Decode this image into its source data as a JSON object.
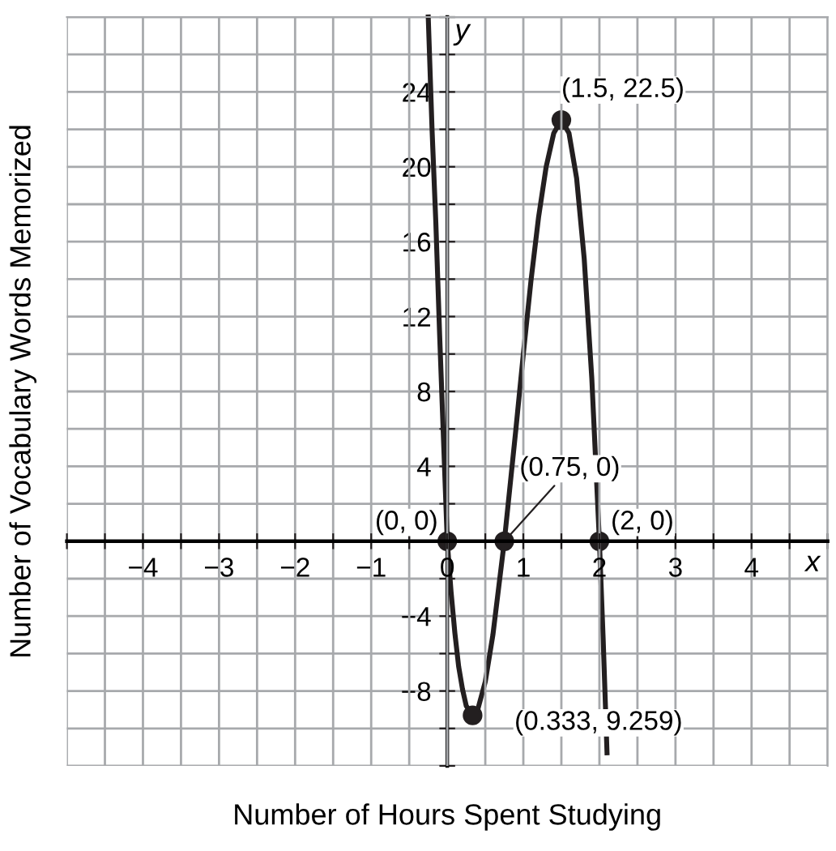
{
  "chart_data": {
    "type": "line",
    "xlabel": "Number of Hours Spent Studying",
    "ylabel": "Number of Vocabulary Words Memorized",
    "xlim": [
      -5,
      5
    ],
    "ylim": [
      -12,
      28
    ],
    "xticks": [
      {
        "value": -5,
        "label": null
      },
      {
        "value": -4.5,
        "label": null
      },
      -4,
      {
        "value": -3.5,
        "label": null
      },
      -3,
      {
        "value": -2.5,
        "label": null
      },
      -2,
      {
        "value": -1.5,
        "label": null
      },
      -1,
      {
        "value": -0.5,
        "label": null
      },
      0,
      {
        "value": 0.5,
        "label": null
      },
      1,
      {
        "value": 1.5,
        "label": null
      },
      2,
      {
        "value": 2.5,
        "label": null
      },
      3,
      {
        "value": 3.5,
        "label": null
      },
      4,
      {
        "value": 4.5,
        "label": null
      },
      {
        "value": 5,
        "label": null
      }
    ],
    "yticks": [
      {
        "value": -12,
        "label": null
      },
      {
        "value": -10,
        "label": null
      },
      -8,
      {
        "value": -6,
        "label": null
      },
      -4,
      {
        "value": -2,
        "label": null
      },
      {
        "value": 0,
        "label": null
      },
      {
        "value": 2,
        "label": null
      },
      4,
      {
        "value": 6,
        "label": null
      },
      8,
      {
        "value": 10,
        "label": null
      },
      12,
      {
        "value": 14,
        "label": null
      },
      16,
      {
        "value": 18,
        "label": null
      },
      20,
      {
        "value": 22,
        "label": null
      },
      24,
      {
        "value": 26,
        "label": null
      },
      {
        "value": 28,
        "label": null
      }
    ],
    "grid": true,
    "series": [
      {
        "color": "#231f20",
        "marker": "none",
        "x": [
          -0.25,
          -0.2,
          -0.15,
          -0.1,
          -0.05,
          0,
          0.05,
          0.1,
          0.15,
          0.2,
          0.25,
          0.333,
          0.4,
          0.5,
          0.6,
          0.75,
          0.9,
          1.0,
          1.1,
          1.2,
          1.3,
          1.4,
          1.5,
          1.6,
          1.7,
          1.8,
          1.9,
          2.0,
          2.05,
          2.1
        ],
        "values": [
          28,
          22,
          17,
          11,
          5.5,
          0,
          -2.7,
          -4.9,
          -6.7,
          -7.9,
          -8.8,
          -9.3,
          -9.0,
          -7.5,
          -5.0,
          0,
          5.9,
          10,
          13.9,
          17.3,
          20.0,
          21.8,
          22.5,
          21.8,
          19.4,
          15.1,
          8.7,
          0,
          -5.3,
          -11.3
        ]
      },
      {
        "type": "scatter",
        "color": "#231f20",
        "marker": "circle",
        "x": [
          0,
          0.333,
          0.75,
          1.5,
          2
        ],
        "values": [
          0,
          -9.3,
          0,
          22.5,
          0
        ]
      }
    ],
    "annotations": [
      {
        "text": "(0, 0)",
        "x": 0,
        "y": 0
      },
      {
        "text": "(0.333, 9.259)",
        "x": 0.333,
        "y": -9.3
      },
      {
        "text": "(0.75, 0)",
        "x": 0.75,
        "y": 0
      },
      {
        "text": "(1.5, 22.5)",
        "x": 1.5,
        "y": 22.5
      },
      {
        "text": "(2, 0)",
        "x": 2,
        "y": 0
      },
      "x",
      "y"
    ]
  }
}
